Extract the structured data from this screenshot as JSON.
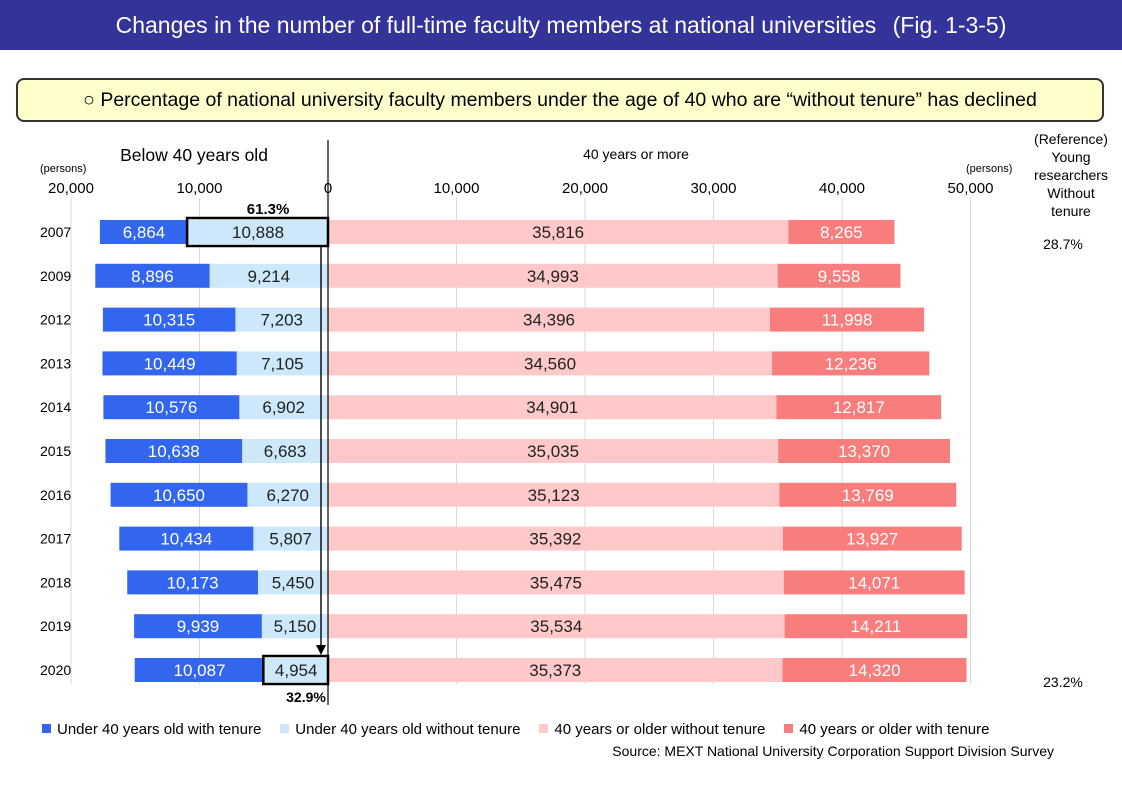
{
  "header": {
    "title": "Changes in the number of full-time faculty members at national universities",
    "fig_number": "(Fig. 1-3-5)"
  },
  "headline": {
    "symbol": "○",
    "text": "Percentage of national university faculty members under the age of 40 who are “without tenure” has declined"
  },
  "source": "Source: MEXT National University Corporation Support Division Survey",
  "colors": {
    "under40_with_tenure": "#3366ee",
    "under40_without_tenure": "#cce8fa",
    "over40_without_tenure": "#ffc9c9",
    "over40_with_tenure": "#f87d7d"
  },
  "chart_data": {
    "type": "bar",
    "orientation": "horizontal-diverging",
    "left_group_label": "Below 40 years old",
    "right_group_label": "40 years or more",
    "left_unit": "(persons)",
    "right_unit": "(persons)",
    "left_ticks": [
      "20,000",
      "10,000",
      "0"
    ],
    "right_ticks": [
      "10,000",
      "20,000",
      "30,000",
      "40,000",
      "50,000"
    ],
    "xlim_left": [
      0,
      20000
    ],
    "xlim_right": [
      0,
      50000
    ],
    "gridlines": true,
    "legend_position": "bottom",
    "categories": [
      "2007",
      "2009",
      "2012",
      "2013",
      "2014",
      "2015",
      "2016",
      "2017",
      "2018",
      "2019",
      "2020"
    ],
    "series": [
      {
        "name": "Under 40 years old with tenure",
        "side": "left",
        "values": [
          6864,
          8896,
          10315,
          10449,
          10576,
          10638,
          10650,
          10434,
          10173,
          9939,
          10087
        ],
        "labels": [
          "6,864",
          "8,896",
          "10,315",
          "10,449",
          "10,576",
          "10,638",
          "10,650",
          "10,434",
          "10,173",
          "9,939",
          "10,087"
        ]
      },
      {
        "name": "Under 40 years old without tenure",
        "side": "left",
        "values": [
          10888,
          9214,
          7203,
          7105,
          6902,
          6683,
          6270,
          5807,
          5450,
          5150,
          4954
        ],
        "labels": [
          "10,888",
          "9,214",
          "7,203",
          "7,105",
          "6,902",
          "6,683",
          "6,270",
          "5,807",
          "5,450",
          "5,150",
          "4,954"
        ]
      },
      {
        "name": "40 years or older without tenure",
        "side": "right",
        "values": [
          35816,
          34993,
          34396,
          34560,
          34901,
          35035,
          35123,
          35392,
          35475,
          35534,
          35373
        ],
        "labels": [
          "35,816",
          "34,993",
          "34,396",
          "34,560",
          "34,901",
          "35,035",
          "35,123",
          "35,392",
          "35,475",
          "35,534",
          "35,373"
        ]
      },
      {
        "name": "40 years or older with tenure",
        "side": "right",
        "values": [
          8265,
          9558,
          11998,
          12236,
          12817,
          13370,
          13769,
          13927,
          14071,
          14211,
          14320
        ],
        "labels": [
          "8,265",
          "9,558",
          "11,998",
          "12,236",
          "12,817",
          "13,370",
          "13,769",
          "13,927",
          "14,071",
          "14,211",
          "14,320"
        ]
      }
    ],
    "annotations": {
      "top_percent": "61.3%",
      "bottom_percent": "32.9%",
      "highlighted_category_indices": [
        0,
        10
      ]
    },
    "reference": {
      "header_lines": [
        "(Reference)",
        "Young",
        "researchers",
        "Without",
        "tenure"
      ],
      "values": [
        {
          "category_index": 0,
          "label": "28.7%"
        },
        {
          "category_index": 10,
          "label": "23.2%"
        }
      ]
    }
  }
}
